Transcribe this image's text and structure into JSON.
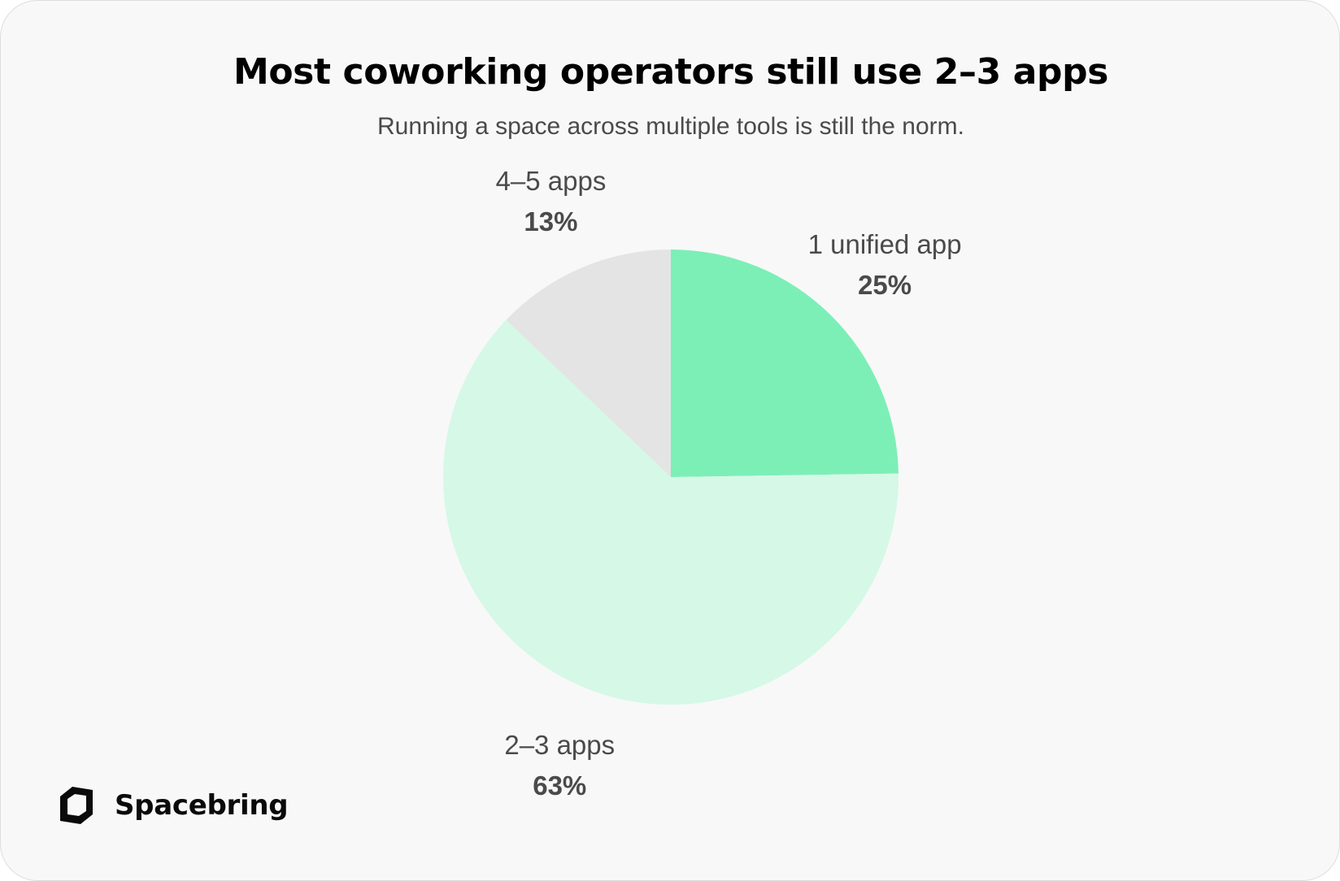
{
  "header": {
    "title": "Most coworking operators still use 2–3 apps",
    "subtitle": "Running a space across multiple tools is still the norm."
  },
  "brand": {
    "name": "Spacebring",
    "icon": "spacebring-logo-icon"
  },
  "colors": {
    "unified": "#7cefb6",
    "two_three": "#d6f8e7",
    "four_five": "#e4e4e4",
    "label": "#4a4a4a",
    "title": "#000000"
  },
  "chart_data": {
    "type": "pie",
    "title": "Most coworking operators still use 2–3 apps",
    "subtitle": "Running a space across multiple tools is still the norm.",
    "start": "12 o'clock, clockwise",
    "slices": [
      {
        "label": "1 unified app",
        "value": 25,
        "display": "25%",
        "color": "#7cefb6"
      },
      {
        "label": "2–3 apps",
        "value": 63,
        "display": "63%",
        "color": "#d6f8e7"
      },
      {
        "label": "4–5 apps",
        "value": 13,
        "display": "13%",
        "color": "#e4e4e4"
      }
    ]
  }
}
